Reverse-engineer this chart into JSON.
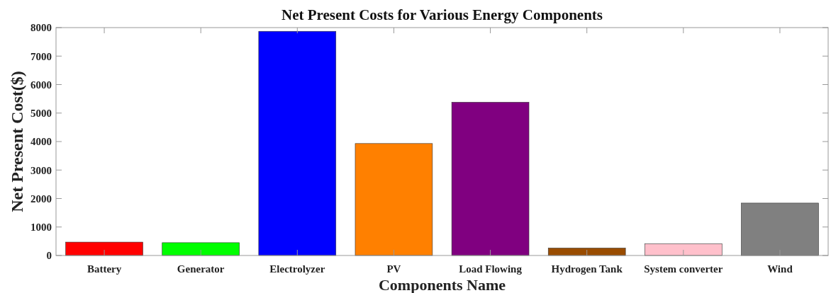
{
  "chart_data": {
    "type": "bar",
    "title": "Net Present Costs for Various Energy Components",
    "xlabel": "Components Name",
    "ylabel": "Net Present Cost($)",
    "categories": [
      "Battery",
      "Generator",
      "Electrolyzer",
      "PV",
      "Load Flowing",
      "Hydrogen Tank",
      "System converter",
      "Wind"
    ],
    "values": [
      470,
      450,
      7870,
      3930,
      5380,
      260,
      410,
      1840
    ],
    "colors": [
      "#ff0000",
      "#00ff00",
      "#0000ff",
      "#ff8000",
      "#800080",
      "#994c00",
      "#ffc0cb",
      "#808080"
    ],
    "ylim": [
      0,
      8000
    ],
    "yticks": [
      0,
      1000,
      2000,
      3000,
      4000,
      5000,
      6000,
      7000,
      8000
    ],
    "grid": false
  }
}
